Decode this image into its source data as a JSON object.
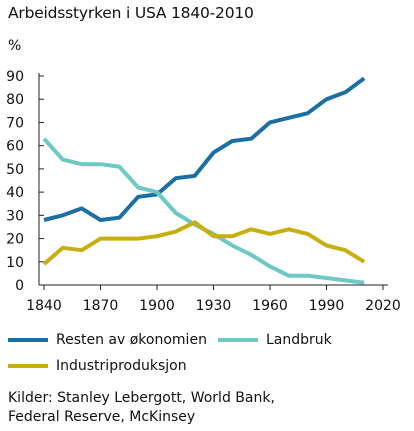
{
  "chart_data": {
    "type": "line",
    "title": "Arbeidsstyrken i USA 1840-2010",
    "ylabel": "%",
    "xlabel": "",
    "xlim": [
      1840,
      2020
    ],
    "ylim": [
      0,
      90
    ],
    "xticks": [
      1840,
      1870,
      1900,
      1930,
      1960,
      1990,
      2020
    ],
    "yticks": [
      0,
      10,
      20,
      30,
      40,
      50,
      60,
      70,
      80,
      90
    ],
    "grid": false,
    "legend_position": "bottom",
    "x": [
      1840,
      1850,
      1860,
      1870,
      1880,
      1890,
      1900,
      1910,
      1920,
      1930,
      1940,
      1950,
      1960,
      1970,
      1980,
      1990,
      2000,
      2010
    ],
    "series": [
      {
        "name": "Resten av økonomien",
        "color": "#1b6fa3",
        "values": [
          28,
          30,
          33,
          28,
          29,
          38,
          39,
          46,
          47,
          57,
          62,
          63,
          70,
          72,
          74,
          80,
          83,
          89
        ]
      },
      {
        "name": "Landbruk",
        "color": "#6ec8c4",
        "values": [
          63,
          54,
          52,
          52,
          51,
          42,
          40,
          31,
          26,
          22,
          17,
          13,
          8,
          4,
          4,
          3,
          2,
          1
        ]
      },
      {
        "name": "Industriproduksjon",
        "color": "#c9ae12",
        "values": [
          9,
          16,
          15,
          20,
          20,
          20,
          21,
          23,
          27,
          21,
          21,
          24,
          22,
          24,
          22,
          17,
          15,
          10
        ]
      }
    ]
  },
  "source_text": "Kilder: Stanley Lebergott, World Bank, Federal Reserve, McKinsey"
}
